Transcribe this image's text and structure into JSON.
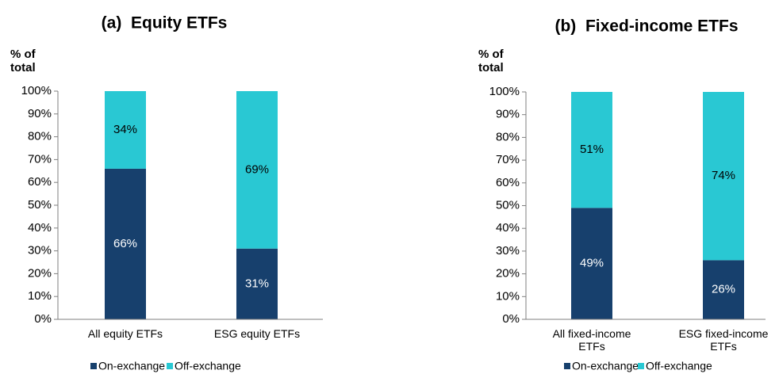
{
  "chart_data": [
    {
      "type": "stacked_bar",
      "title": "(a)  Equity ETFs",
      "ylabel": "% of total",
      "categories": [
        "All equity ETFs",
        "ESG equity ETFs"
      ],
      "series": [
        {
          "name": "On-exchange",
          "color": "#17406d",
          "values": [
            66,
            31
          ],
          "value_labels": [
            "66%",
            "31%"
          ]
        },
        {
          "name": "Off-exchange",
          "color": "#29c8d3",
          "values": [
            34,
            69
          ],
          "value_labels": [
            "34%",
            "69%"
          ]
        }
      ],
      "ylim": [
        0,
        100
      ],
      "yticks": [
        {
          "value": 0,
          "label": "0%"
        },
        {
          "value": 10,
          "label": "10%"
        },
        {
          "value": 20,
          "label": "20%"
        },
        {
          "value": 30,
          "label": "30%"
        },
        {
          "value": 40,
          "label": "40%"
        },
        {
          "value": 50,
          "label": "50%"
        },
        {
          "value": 60,
          "label": "60%"
        },
        {
          "value": 70,
          "label": "70%"
        },
        {
          "value": 80,
          "label": "80%"
        },
        {
          "value": 90,
          "label": "90%"
        },
        {
          "value": 100,
          "label": "100%"
        }
      ],
      "legend": "bottom"
    },
    {
      "type": "stacked_bar",
      "title": "(b)  Fixed-income ETFs",
      "ylabel": "% of total",
      "categories": [
        "All fixed-income ETFs",
        "ESG fixed-income ETFs"
      ],
      "series": [
        {
          "name": "On-exchange",
          "color": "#17406d",
          "values": [
            49,
            26
          ],
          "value_labels": [
            "49%",
            "26%"
          ]
        },
        {
          "name": "Off-exchange",
          "color": "#29c8d3",
          "values": [
            51,
            74
          ],
          "value_labels": [
            "51%",
            "74%"
          ]
        }
      ],
      "ylim": [
        0,
        100
      ],
      "yticks": [
        {
          "value": 0,
          "label": "0%"
        },
        {
          "value": 10,
          "label": "10%"
        },
        {
          "value": 20,
          "label": "20%"
        },
        {
          "value": 30,
          "label": "30%"
        },
        {
          "value": 40,
          "label": "40%"
        },
        {
          "value": 50,
          "label": "50%"
        },
        {
          "value": 60,
          "label": "60%"
        },
        {
          "value": 70,
          "label": "70%"
        },
        {
          "value": 80,
          "label": "80%"
        },
        {
          "value": 90,
          "label": "90%"
        },
        {
          "value": 100,
          "label": "100%"
        }
      ],
      "legend": "bottom"
    }
  ]
}
